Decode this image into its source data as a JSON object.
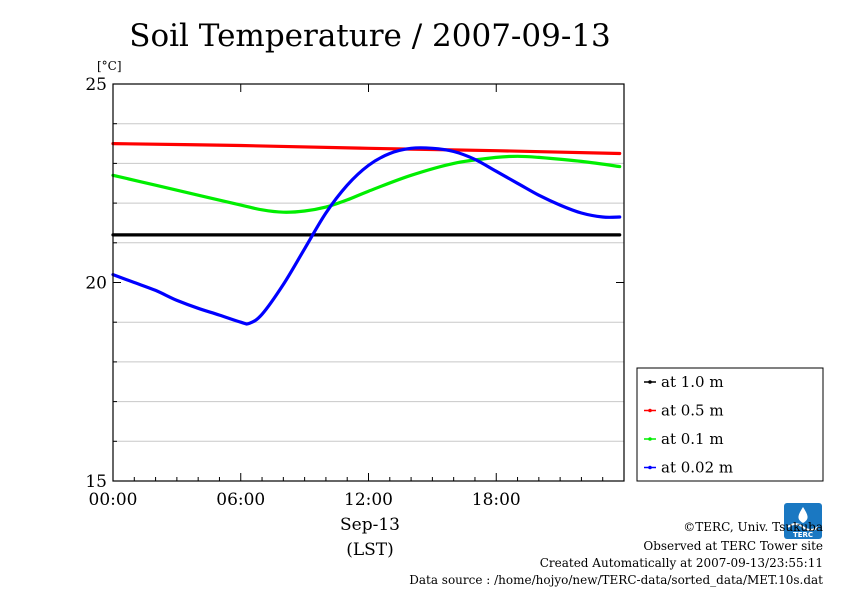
{
  "chart_data": {
    "type": "line",
    "title": "Soil Temperature / 2007-09-13",
    "ylabel": "[°C]",
    "xlabel": "Sep-13",
    "xlabel_sub": "(LST)",
    "x_range_hours": [
      0,
      24
    ],
    "ylim": [
      15,
      25
    ],
    "x_ticks": [
      {
        "hour": 0,
        "label": "00:00"
      },
      {
        "hour": 6,
        "label": "06:00"
      },
      {
        "hour": 12,
        "label": "12:00"
      },
      {
        "hour": 18,
        "label": "18:00"
      }
    ],
    "y_ticks": [
      {
        "value": 15,
        "label": "15"
      },
      {
        "value": 20,
        "label": "20"
      },
      {
        "value": 25,
        "label": "25"
      }
    ],
    "grid_y_values": [
      16,
      17,
      18,
      19,
      21,
      22,
      23,
      24
    ],
    "grid": true,
    "legend_position": "bottom-right outside",
    "series": [
      {
        "name": "at 1.0 m",
        "color": "#000000",
        "x": [
          0,
          6,
          12,
          18,
          23.8
        ],
        "y": [
          21.2,
          21.2,
          21.2,
          21.2,
          21.2
        ]
      },
      {
        "name": "at 0.5 m",
        "color": "#ff0000",
        "x": [
          0,
          6,
          12,
          18,
          23.8
        ],
        "y": [
          23.5,
          23.45,
          23.38,
          23.32,
          23.25
        ]
      },
      {
        "name": "at 0.1 m",
        "color": "#00ee00",
        "x": [
          0,
          2,
          4,
          6,
          7,
          8,
          9,
          10,
          11,
          12,
          14,
          16,
          18,
          19,
          20,
          22,
          23.8
        ],
        "y": [
          22.7,
          22.45,
          22.2,
          21.95,
          21.83,
          21.77,
          21.8,
          21.9,
          22.08,
          22.3,
          22.7,
          23.0,
          23.15,
          23.18,
          23.15,
          23.05,
          22.92
        ]
      },
      {
        "name": "at 0.02 m",
        "color": "#0000ff",
        "x": [
          0,
          1,
          2,
          3,
          4,
          5,
          6,
          6.4,
          7,
          8,
          9,
          10,
          11,
          12,
          13,
          14,
          15,
          16,
          17,
          18,
          19,
          20,
          21,
          22,
          23,
          23.8
        ],
        "y": [
          20.2,
          20.0,
          19.8,
          19.55,
          19.35,
          19.18,
          19.0,
          18.97,
          19.2,
          19.95,
          20.85,
          21.75,
          22.45,
          22.95,
          23.25,
          23.38,
          23.38,
          23.3,
          23.1,
          22.8,
          22.5,
          22.2,
          21.95,
          21.75,
          21.65,
          21.65
        ]
      }
    ]
  },
  "footer": {
    "copyright": "©TERC, Univ. Tsukuba",
    "observed": "Observed at TERC Tower site",
    "created": "Created Automatically at 2007-09-13/23:55:11",
    "source": "Data source : /home/hojyo/new/TERC-data/sorted_data/MET.10s.dat",
    "logo_text": "TERC",
    "logo_color": "#1a78c2"
  }
}
